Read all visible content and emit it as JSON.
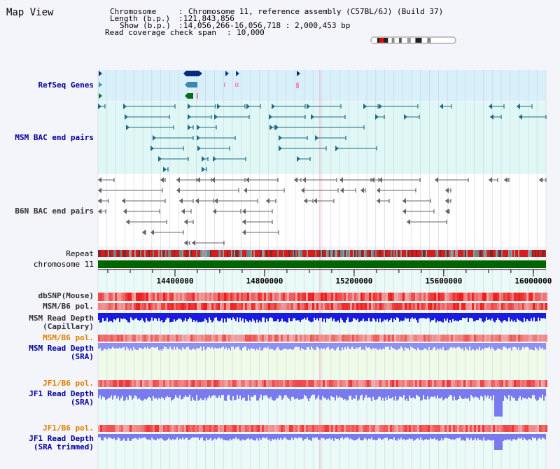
{
  "app": {
    "title": "Map View"
  },
  "info": {
    "chromosome_label": "Chromosome",
    "chromosome_value": "Chromosome 11, reference assembly (C57BL/6J) (Build 37)",
    "length_label": "Length (b.p.)",
    "length_value": "121,843,856",
    "show_label": "Show (b.p.)",
    "show_value": "14,056,266-16,056,718 : 2,000,453 bp",
    "coverage_label": "Read coverage check span",
    "coverage_value": "10,000"
  },
  "tracks": {
    "refseq": "RefSeq Genes",
    "msm_bac": "MSM BAC end pairs",
    "b6n_bac": "B6N BAC end pairs",
    "repeat": "Repeat",
    "chromosome": "chromosome 11",
    "dbsnp": "dbSNP(Mouse)",
    "msm_b6_pol": "MSM/B6 pol.",
    "msm_depth_cap_1": "MSM Read Depth",
    "msm_depth_cap_2": "(Capillary)",
    "msm_b6_pol_2": "MSM/B6 pol.",
    "msm_depth_sra_1": "MSM Read Depth",
    "msm_depth_sra_2": "(SRA)",
    "jf1_b6_pol": "JF1/B6 pol.",
    "jf1_depth_sra_1": "JF1 Read Depth",
    "jf1_depth_sra_2": "(SRA)",
    "jf1_b6_pol_2": "JF1/B6 pol.",
    "jf1_depth_trim_1": "JF1 Read Depth",
    "jf1_depth_trim_2": "(SRA trimmed)"
  },
  "axis": {
    "ticks": [
      {
        "value": 14400000,
        "label": "14400000"
      },
      {
        "value": 14800000,
        "label": "14800000"
      },
      {
        "value": 15200000,
        "label": "15200000"
      },
      {
        "value": 15600000,
        "label": "15600000"
      },
      {
        "value": 16000000,
        "label": "16000000"
      }
    ],
    "start": 14056266,
    "end": 16056718
  },
  "colors": {
    "page_bg": "#f4f4fb",
    "refseq_bg": "#d8f0fa",
    "msm_bg": "#dff8f6",
    "b6n_bg": "#ffffff",
    "track_bg": "#eafaf7",
    "sra_bg": "#eefbe9",
    "chromosome_bar": "#006400",
    "depth_blue": "#1a1ae0",
    "depth_lavender": "#7a7af0",
    "snp_red": "#ee2222",
    "bac_teal": "#1f6b8a",
    "bac_gray": "#666666"
  }
}
